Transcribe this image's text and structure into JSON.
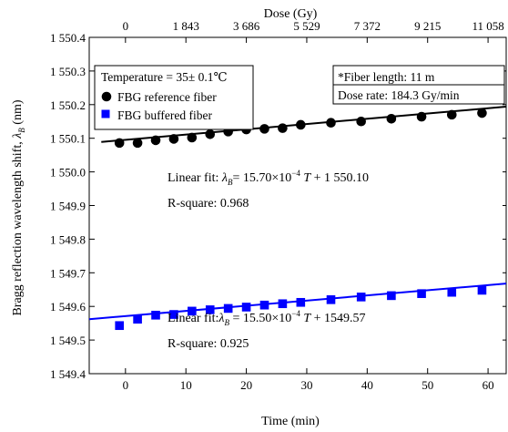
{
  "chart_data": {
    "type": "scatter",
    "top_axis": {
      "label": "Dose (Gy)",
      "ticks": [
        {
          "time": 0,
          "label": "0"
        },
        {
          "time": 10,
          "label": "1 843"
        },
        {
          "time": 20,
          "label": "3 686"
        },
        {
          "time": 30,
          "label": "5 529"
        },
        {
          "time": 40,
          "label": "7 372"
        },
        {
          "time": 50,
          "label": "9 215"
        },
        {
          "time": 60,
          "label": "11 058"
        }
      ]
    },
    "x_axis": {
      "label": "Time (min)",
      "range": [
        -6,
        63
      ],
      "ticks": [
        0,
        10,
        20,
        30,
        40,
        50,
        60
      ]
    },
    "y_axis": {
      "label_main": "Bragg reflection wavelength shift, ",
      "label_symbol": "λ",
      "label_sub": "B",
      "label_unit": " (nm)",
      "range": [
        1549.4,
        1550.4
      ],
      "ticks": [
        {
          "value": 1550.4,
          "label": "1 550.4"
        },
        {
          "value": 1550.3,
          "label": "1 550.3"
        },
        {
          "value": 1550.2,
          "label": "1 550.2"
        },
        {
          "value": 1550.1,
          "label": "1 550.1"
        },
        {
          "value": 1550.0,
          "label": "1 550.0"
        },
        {
          "value": 1549.9,
          "label": "1 549.9"
        },
        {
          "value": 1549.8,
          "label": "1 549.8"
        },
        {
          "value": 1549.7,
          "label": "1 549.7"
        },
        {
          "value": 1549.6,
          "label": "1 549.6"
        },
        {
          "value": 1549.5,
          "label": "1 549.5"
        },
        {
          "value": 1549.4,
          "label": "1 549.4"
        }
      ]
    },
    "legend": {
      "placement": "top-left",
      "title": "Temperature = 35± 0.1℃",
      "entries": [
        "FBG reference fiber",
        "FBG buffered fiber"
      ]
    },
    "info_box": {
      "placement": "top-right",
      "line1": "*Fiber length: 11 m",
      "line2": "Dose rate: 184.3 Gy/min"
    },
    "series": [
      {
        "name": "FBG reference fiber",
        "marker": "circle",
        "color": "#000000",
        "points": [
          [
            -1,
            1550.086
          ],
          [
            2,
            1550.086
          ],
          [
            5,
            1550.094
          ],
          [
            8,
            1550.098
          ],
          [
            11,
            1550.102
          ],
          [
            14,
            1550.112
          ],
          [
            17,
            1550.12
          ],
          [
            20,
            1550.126
          ],
          [
            23,
            1550.128
          ],
          [
            26,
            1550.13
          ],
          [
            29,
            1550.14
          ],
          [
            34,
            1550.146
          ],
          [
            39,
            1550.15
          ],
          [
            44,
            1550.158
          ],
          [
            49,
            1550.164
          ],
          [
            54,
            1550.17
          ],
          [
            59,
            1550.175
          ]
        ],
        "fit": {
          "x": [
            -4,
            63
          ],
          "y": [
            1550.089,
            1550.194
          ]
        }
      },
      {
        "name": "FBG buffered fiber",
        "marker": "square",
        "color": "#0000ff",
        "points": [
          [
            -1,
            1549.543
          ],
          [
            2,
            1549.562
          ],
          [
            5,
            1549.574
          ],
          [
            8,
            1549.576
          ],
          [
            11,
            1549.586
          ],
          [
            14,
            1549.59
          ],
          [
            17,
            1549.594
          ],
          [
            20,
            1549.598
          ],
          [
            23,
            1549.604
          ],
          [
            26,
            1549.608
          ],
          [
            29,
            1549.612
          ],
          [
            34,
            1549.62
          ],
          [
            39,
            1549.628
          ],
          [
            44,
            1549.632
          ],
          [
            49,
            1549.638
          ],
          [
            54,
            1549.642
          ],
          [
            59,
            1549.648
          ]
        ],
        "fit": {
          "x": [
            -6,
            63
          ],
          "y": [
            1549.562,
            1549.668
          ]
        }
      }
    ],
    "annotations": [
      {
        "pre": "Linear fit: ",
        "sym": "λ",
        "sub": "B",
        "mid": "= 15.70×10",
        "sup": "−4",
        "var": " T",
        "post": " + 1 550.10"
      },
      {
        "text": "R-square: 0.968"
      },
      {
        "pre": "Linear fit:",
        "sym": "λ",
        "sub": "B",
        "mid": " = 15.50×10",
        "sup": "−4",
        "var": " T",
        "post": " + 1549.57"
      },
      {
        "text": "R-square: 0.925"
      }
    ],
    "grid": false
  }
}
